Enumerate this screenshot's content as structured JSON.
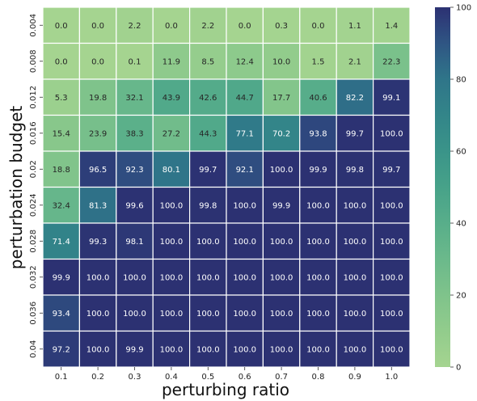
{
  "chart_data": {
    "type": "heatmap",
    "xlabel": "perturbing ratio",
    "ylabel": "perturbation budget",
    "x_categories": [
      "0.1",
      "0.2",
      "0.3",
      "0.4",
      "0.5",
      "0.6",
      "0.7",
      "0.8",
      "0.9",
      "1.0"
    ],
    "y_categories": [
      "0.004",
      "0.008",
      "0.012",
      "0.016",
      "0.02",
      "0.024",
      "0.028",
      "0.032",
      "0.036",
      "0.04"
    ],
    "values": [
      [
        0.0,
        0.0,
        2.2,
        0.0,
        2.2,
        0.0,
        0.3,
        0.0,
        1.1,
        1.4
      ],
      [
        0.0,
        0.0,
        0.1,
        11.9,
        8.5,
        12.4,
        10.0,
        1.5,
        2.1,
        22.3
      ],
      [
        5.3,
        19.8,
        32.1,
        43.9,
        42.6,
        44.7,
        17.7,
        40.6,
        82.2,
        99.1
      ],
      [
        15.4,
        23.9,
        38.3,
        27.2,
        44.3,
        77.1,
        70.2,
        93.8,
        99.7,
        100.0
      ],
      [
        18.8,
        96.5,
        92.3,
        80.1,
        99.7,
        92.1,
        100.0,
        99.9,
        99.8,
        99.7
      ],
      [
        32.4,
        81.3,
        99.6,
        100.0,
        99.8,
        100.0,
        99.9,
        100.0,
        100.0,
        100.0
      ],
      [
        71.4,
        99.3,
        98.1,
        100.0,
        100.0,
        100.0,
        100.0,
        100.0,
        100.0,
        100.0
      ],
      [
        99.9,
        100.0,
        100.0,
        100.0,
        100.0,
        100.0,
        100.0,
        100.0,
        100.0,
        100.0
      ],
      [
        93.4,
        100.0,
        100.0,
        100.0,
        100.0,
        100.0,
        100.0,
        100.0,
        100.0,
        100.0
      ],
      [
        97.2,
        100.0,
        99.9,
        100.0,
        100.0,
        100.0,
        100.0,
        100.0,
        100.0,
        100.0
      ]
    ],
    "value_format": "0.0",
    "colorbar": {
      "min": 0,
      "max": 100,
      "ticks": [
        0,
        20,
        40,
        60,
        80,
        100
      ],
      "colormap": "crest",
      "color_low": "#a5d490",
      "color_high": "#2c3172"
    },
    "grid_line_color": "#ffffff"
  }
}
